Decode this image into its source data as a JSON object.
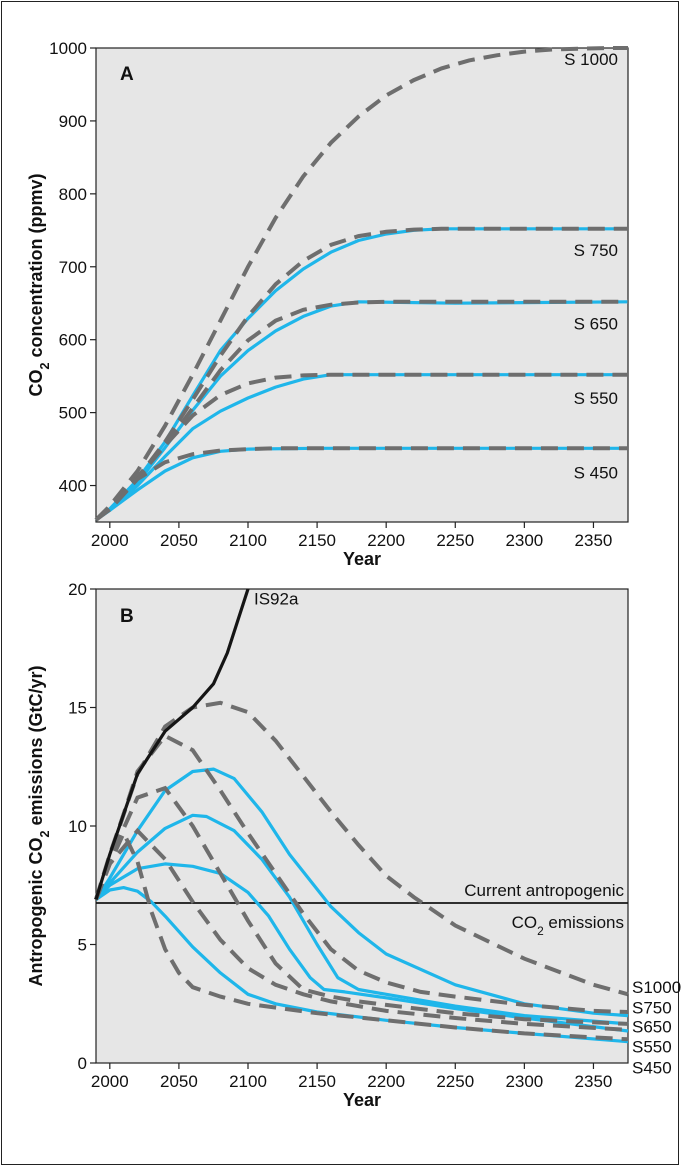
{
  "chart_data": [
    {
      "type": "line",
      "panel": "A",
      "xlabel": "Year",
      "ylabel_main": "CO",
      "ylabel_sub": "2",
      "ylabel_rest": " concentration (ppmv)",
      "xlim": [
        1990,
        2375
      ],
      "ylim": [
        350,
        1000
      ],
      "xticks": [
        2000,
        2050,
        2100,
        2150,
        2200,
        2250,
        2300,
        2350
      ],
      "yticks": [
        400,
        500,
        600,
        700,
        800,
        900,
        1000
      ],
      "series": [
        {
          "name": "S 1000",
          "style": "dashed",
          "label_x": 2340,
          "label_y": 985,
          "x": [
            1990,
            2000,
            2020,
            2040,
            2060,
            2080,
            2100,
            2120,
            2140,
            2160,
            2180,
            2200,
            2220,
            2240,
            2260,
            2280,
            2300,
            2320,
            2340,
            2360,
            2375
          ],
          "y": [
            353,
            372,
            420,
            482,
            552,
            626,
            700,
            767,
            824,
            870,
            906,
            935,
            956,
            972,
            983,
            990,
            995,
            998,
            999,
            1000,
            1000
          ]
        },
        {
          "name": "S 750",
          "style": "dashed",
          "label_x": 2340,
          "label_y": 723,
          "x": [
            1990,
            2000,
            2020,
            2040,
            2060,
            2080,
            2100,
            2120,
            2140,
            2160,
            2180,
            2200,
            2220,
            2240,
            2260,
            2300,
            2375
          ],
          "y": [
            353,
            370,
            410,
            460,
            518,
            578,
            632,
            676,
            708,
            730,
            742,
            748,
            751,
            752,
            752,
            752,
            752
          ]
        },
        {
          "name": "S 650",
          "style": "dashed",
          "label_x": 2340,
          "label_y": 622,
          "x": [
            1990,
            2000,
            2020,
            2040,
            2060,
            2080,
            2100,
            2120,
            2140,
            2160,
            2180,
            2200,
            2250,
            2375
          ],
          "y": [
            353,
            368,
            410,
            455,
            506,
            558,
            599,
            626,
            641,
            648,
            651,
            652,
            652,
            652
          ]
        },
        {
          "name": "S 550",
          "style": "dashed",
          "label_x": 2340,
          "label_y": 520,
          "x": [
            1990,
            2000,
            2020,
            2040,
            2060,
            2080,
            2100,
            2120,
            2140,
            2160,
            2200,
            2375
          ],
          "y": [
            353,
            368,
            412,
            455,
            496,
            524,
            540,
            548,
            551,
            552,
            552,
            552
          ]
        },
        {
          "name": "S 450",
          "style": "dashed",
          "label_x": 2340,
          "label_y": 418,
          "x": [
            1990,
            2000,
            2020,
            2040,
            2060,
            2080,
            2100,
            2120,
            2150,
            2375
          ],
          "y": [
            353,
            367,
            409,
            432,
            443,
            448,
            450,
            451,
            451,
            451
          ]
        },
        {
          "name": "",
          "style": "solid",
          "x": [
            1990,
            2000,
            2020,
            2040,
            2060,
            2080,
            2100,
            2120,
            2140,
            2160,
            2180,
            2200,
            2220,
            2240,
            2375
          ],
          "y": [
            353,
            368,
            408,
            460,
            523,
            585,
            629,
            667,
            697,
            720,
            736,
            745,
            750,
            752,
            752
          ]
        },
        {
          "name": "",
          "style": "solid",
          "x": [
            1990,
            2000,
            2020,
            2040,
            2060,
            2080,
            2100,
            2120,
            2140,
            2160,
            2180,
            2250,
            2375
          ],
          "y": [
            353,
            367,
            404,
            452,
            503,
            550,
            585,
            612,
            632,
            646,
            652,
            650,
            652
          ]
        },
        {
          "name": "",
          "style": "solid",
          "x": [
            1990,
            2000,
            2020,
            2040,
            2060,
            2080,
            2100,
            2120,
            2140,
            2160,
            2375
          ],
          "y": [
            353,
            366,
            400,
            440,
            478,
            502,
            520,
            535,
            546,
            552,
            552
          ]
        },
        {
          "name": "",
          "style": "solid",
          "x": [
            1990,
            2000,
            2020,
            2040,
            2060,
            2080,
            2100,
            2150,
            2375
          ],
          "y": [
            353,
            366,
            394,
            420,
            438,
            447,
            450,
            451,
            451
          ]
        }
      ]
    },
    {
      "type": "line",
      "panel": "B",
      "xlabel": "Year",
      "ylabel_main": "Antropogenic CO",
      "ylabel_sub": "2",
      "ylabel_rest": " emissions (GtC/yr)",
      "xlim": [
        1990,
        2375
      ],
      "ylim": [
        0,
        20
      ],
      "xticks": [
        2000,
        2050,
        2100,
        2150,
        2200,
        2250,
        2300,
        2350
      ],
      "yticks": [
        0,
        5,
        10,
        15,
        20
      ],
      "reference_line": {
        "y": 6.75,
        "label_line1": "Current antropogenic",
        "label_line2_main": "CO",
        "label_line2_sub": "2",
        "label_line2_rest": " emissions"
      },
      "series": [
        {
          "name": "IS92a",
          "style": "black",
          "label_x": 2100,
          "label_y": 19.6,
          "x": [
            1990,
            2000,
            2020,
            2040,
            2060,
            2075,
            2085,
            2100
          ],
          "y": [
            6.9,
            8.8,
            12.2,
            14.0,
            15.0,
            16.0,
            17.3,
            20.0
          ]
        },
        {
          "name": "S1000",
          "style": "dashed",
          "label_x": 2380,
          "label_y": 3.2,
          "x": [
            1990,
            2000,
            2020,
            2040,
            2060,
            2080,
            2100,
            2120,
            2140,
            2160,
            2180,
            2200,
            2220,
            2250,
            2300,
            2350,
            2375
          ],
          "y": [
            6.9,
            8.8,
            12.2,
            14.2,
            15.0,
            15.2,
            14.8,
            13.6,
            12.1,
            10.6,
            9.2,
            7.9,
            7.0,
            5.8,
            4.4,
            3.3,
            2.9
          ]
        },
        {
          "name": "S750",
          "style": "dashed",
          "label_x": 2380,
          "label_y": 2.35,
          "x": [
            1990,
            2000,
            2020,
            2040,
            2060,
            2080,
            2100,
            2120,
            2140,
            2160,
            2180,
            2200,
            2225,
            2250,
            2300,
            2350,
            2375
          ],
          "y": [
            6.9,
            8.7,
            12.3,
            13.8,
            13.2,
            11.5,
            9.7,
            8.0,
            6.3,
            4.8,
            3.9,
            3.4,
            3.0,
            2.8,
            2.45,
            2.2,
            2.15
          ]
        },
        {
          "name": "S650",
          "style": "dashed",
          "label_x": 2380,
          "label_y": 1.55,
          "x": [
            1990,
            2000,
            2020,
            2040,
            2060,
            2080,
            2100,
            2120,
            2140,
            2160,
            2180,
            2200,
            2250,
            2300,
            2375
          ],
          "y": [
            6.9,
            8.6,
            11.2,
            11.6,
            10.0,
            8.0,
            6.0,
            4.2,
            3.1,
            2.8,
            2.6,
            2.45,
            2.1,
            1.85,
            1.65
          ]
        },
        {
          "name": "S550",
          "style": "dashed",
          "label_x": 2380,
          "label_y": 0.7,
          "x": [
            1990,
            2000,
            2020,
            2040,
            2060,
            2080,
            2100,
            2120,
            2140,
            2160,
            2200,
            2250,
            2300,
            2375
          ],
          "y": [
            6.9,
            8.4,
            9.8,
            8.6,
            6.8,
            5.2,
            4.0,
            3.3,
            2.9,
            2.6,
            2.2,
            1.9,
            1.65,
            1.4
          ]
        },
        {
          "name": "S450",
          "style": "dashed",
          "label_x": 2380,
          "label_y": -0.2,
          "x": [
            1990,
            2000,
            2010,
            2020,
            2030,
            2040,
            2050,
            2060,
            2080,
            2100,
            2150,
            2200,
            2250,
            2300,
            2375
          ],
          "y": [
            6.9,
            8.4,
            9.7,
            8.5,
            6.4,
            4.8,
            3.8,
            3.2,
            2.8,
            2.5,
            2.1,
            1.8,
            1.5,
            1.25,
            1.0
          ]
        },
        {
          "name": "",
          "style": "solid",
          "x": [
            1990,
            2000,
            2020,
            2040,
            2060,
            2075,
            2090,
            2110,
            2130,
            2160,
            2180,
            2200,
            2250,
            2300,
            2350,
            2375
          ],
          "y": [
            6.9,
            7.8,
            9.8,
            11.5,
            12.3,
            12.4,
            12.0,
            10.6,
            8.8,
            6.6,
            5.5,
            4.6,
            3.3,
            2.5,
            2.1,
            2.0
          ]
        },
        {
          "name": "",
          "style": "solid",
          "x": [
            1990,
            2000,
            2020,
            2040,
            2060,
            2070,
            2090,
            2110,
            2130,
            2150,
            2165,
            2180,
            2200,
            2250,
            2300,
            2375
          ],
          "y": [
            6.9,
            7.6,
            8.9,
            9.9,
            10.45,
            10.4,
            9.8,
            8.6,
            7.0,
            5.0,
            3.6,
            3.1,
            2.9,
            2.4,
            2.0,
            1.65
          ]
        },
        {
          "name": "",
          "style": "solid",
          "x": [
            1990,
            2000,
            2020,
            2040,
            2060,
            2080,
            2100,
            2115,
            2130,
            2145,
            2155,
            2170,
            2200,
            2250,
            2300,
            2375
          ],
          "y": [
            6.9,
            7.5,
            8.2,
            8.4,
            8.3,
            8.0,
            7.2,
            6.2,
            4.8,
            3.6,
            3.1,
            3.0,
            2.75,
            2.3,
            1.9,
            1.35
          ]
        },
        {
          "name": "",
          "style": "solid",
          "x": [
            1990,
            2000,
            2010,
            2020,
            2030,
            2040,
            2060,
            2080,
            2100,
            2120,
            2150,
            2200,
            2250,
            2300,
            2375
          ],
          "y": [
            6.9,
            7.3,
            7.4,
            7.25,
            6.8,
            6.2,
            4.9,
            3.8,
            2.9,
            2.5,
            2.15,
            1.8,
            1.5,
            1.25,
            0.9
          ]
        }
      ]
    }
  ]
}
